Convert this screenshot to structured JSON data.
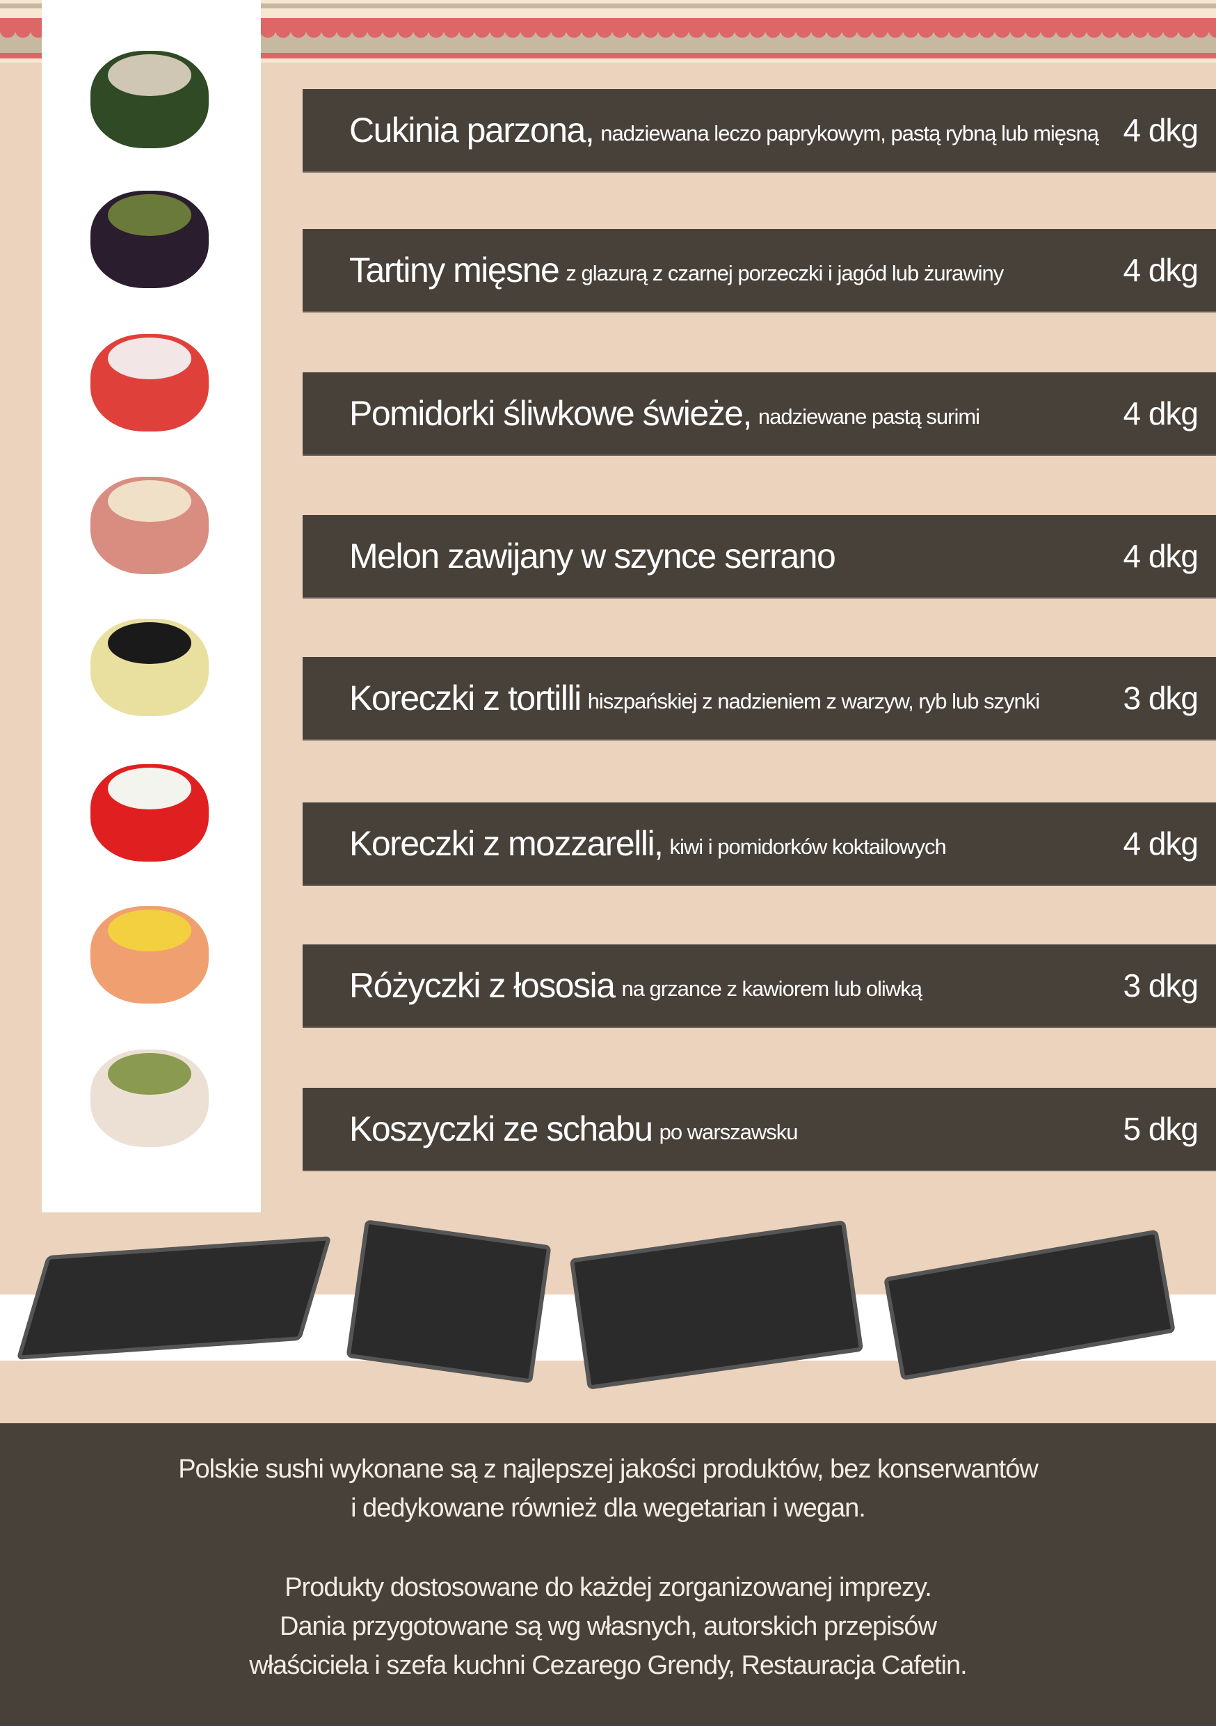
{
  "colors": {
    "background": "#ecd3bd",
    "bar": "#48413a",
    "accent_red": "#dd6666",
    "stripe_gray": "#c7b9a0"
  },
  "items": [
    {
      "name": "Cukinia parzona,",
      "desc": "nadziewana leczo paprykowym, pastą rybną lub mięsną",
      "weight": "4 dkg",
      "image": "stuffed-zucchini"
    },
    {
      "name": "Tartiny mięsne",
      "desc": "z glazurą z czarnej porzeczki i jagód lub żurawiny",
      "weight": "4 dkg",
      "image": "meat-tartlet"
    },
    {
      "name": "Pomidorki śliwkowe świeże,",
      "desc": "nadziewane pastą surimi",
      "weight": "4 dkg",
      "image": "stuffed-tomato"
    },
    {
      "name": "Melon zawijany w szynce serrano",
      "desc": "",
      "weight": "4 dkg",
      "image": "melon-serrano"
    },
    {
      "name": "Koreczki z tortilli",
      "desc": "hiszpańskiej z nadzieniem z warzyw, ryb lub szynki",
      "weight": "3 dkg",
      "image": "tortilla-skewer"
    },
    {
      "name": "Koreczki z mozzarelli,",
      "desc": "kiwi i pomidorków koktailowych",
      "weight": "4 dkg",
      "image": "mozzarella-skewer"
    },
    {
      "name": "Różyczki z łososia",
      "desc": "na grzance z kawiorem lub oliwką",
      "weight": "3 dkg",
      "image": "salmon-rose"
    },
    {
      "name": "Koszyczki ze schabu",
      "desc": "po warszawsku",
      "weight": "5 dkg",
      "image": "pork-basket"
    }
  ],
  "footer": {
    "lines1": [
      "Polskie sushi wykonane są z najlepszej jakości produktów, bez konserwantów",
      "i dedykowane również dla wegetarian i wegan."
    ],
    "lines2": [
      "Produkty dostosowane do każdej zorganizowanej imprezy.",
      "Dania przygotowane są wg własnych, autorskich przepisów",
      "właściciela i szefa kuchni Cezarego Grendy, Restauracja Cafetin."
    ]
  }
}
